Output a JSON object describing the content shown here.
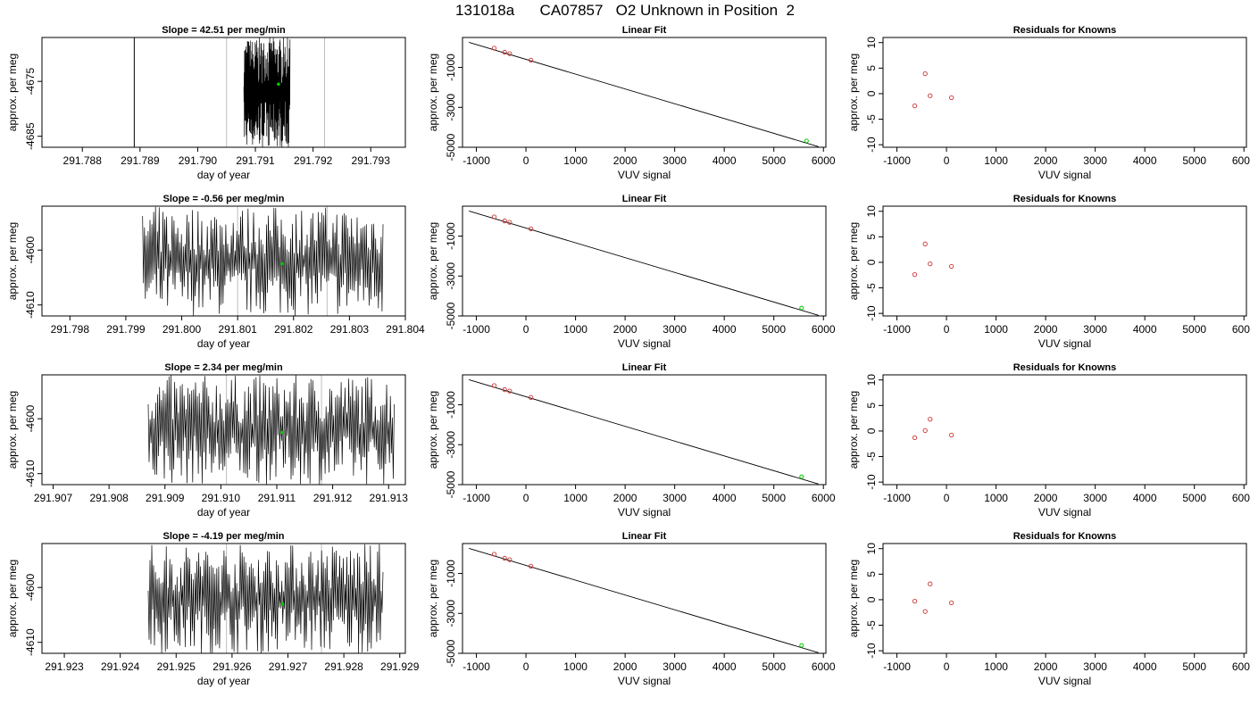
{
  "title": "131018a      CA07857   O2 Unknown in Position  2",
  "chart_data": [
    {
      "type": "line",
      "title": "Slope =  42.51  per meg/min",
      "xlabel": "day of year",
      "ylabel": "approx. per meg",
      "xlim": [
        291.7873,
        291.7936
      ],
      "ylim": [
        -4687,
        -4667
      ],
      "xticks": [
        "291.788",
        "291.789",
        "291.790",
        "291.791",
        "291.792",
        "291.793"
      ],
      "yticks": [
        "-4675",
        "-4685"
      ],
      "vlines_black": [
        291.7889
      ],
      "vlines_gray": [
        291.7905,
        291.7922
      ],
      "trace_x_range": [
        291.7908,
        291.7916
      ],
      "trace_y_range": [
        -4687,
        -4667
      ],
      "green_point": [
        291.7914,
        -4675.5
      ]
    },
    {
      "type": "scatter",
      "title": "Linear Fit",
      "xlabel": "VUV signal",
      "ylabel": "approx. per meg",
      "xlim": [
        -1280,
        6050
      ],
      "ylim": [
        -5000,
        500
      ],
      "xticks": [
        "-1000",
        "0",
        "1000",
        "2000",
        "3000",
        "4000",
        "5000",
        "6000"
      ],
      "yticks": [
        "-1000",
        "-3000",
        "-5000"
      ],
      "points": [
        [
          -640,
          -39
        ],
        [
          -430,
          -241
        ],
        [
          -330,
          -311
        ],
        [
          100,
          -633
        ]
      ],
      "unknown": [
        5660,
        -4681
      ],
      "fit_line": [
        [
          -1150,
          257
        ],
        [
          5900,
          -4970
        ]
      ]
    },
    {
      "type": "scatter",
      "title": "Residuals for Knowns",
      "xlabel": "VUV signal",
      "ylabel": "approx. per meg",
      "xlim": [
        -1280,
        6050
      ],
      "ylim": [
        -10.5,
        11
      ],
      "xticks": [
        "-1000",
        "0",
        "1000",
        "2000",
        "3000",
        "4000",
        "5000",
        "6000"
      ],
      "yticks": [
        "10",
        "5",
        "0",
        "-5",
        "-10"
      ],
      "points": [
        [
          -640,
          -2.4
        ],
        [
          -430,
          3.9
        ],
        [
          -330,
          -0.4
        ],
        [
          100,
          -0.8
        ]
      ]
    },
    {
      "type": "line",
      "title": "Slope =  -0.56  per meg/min",
      "xlabel": "day of year",
      "ylabel": "approx. per meg",
      "xlim": [
        291.7975,
        291.804
      ],
      "ylim": [
        -4612,
        -4592
      ],
      "xticks": [
        "291.798",
        "291.799",
        "291.800",
        "291.801",
        "291.802",
        "291.803",
        "291.804"
      ],
      "yticks": [
        "-4600",
        "-4610"
      ],
      "vlines_black": [],
      "vlines_gray": [
        291.801,
        291.8026
      ],
      "trace_x_range": [
        291.7993,
        291.8036
      ],
      "trace_y_range": [
        -4612,
        -4592
      ],
      "green_point": [
        291.8018,
        -4602.5
      ]
    },
    {
      "type": "scatter",
      "title": "Linear Fit",
      "xlabel": "VUV signal",
      "ylabel": "approx. per meg",
      "xlim": [
        -1280,
        6050
      ],
      "ylim": [
        -5000,
        500
      ],
      "xticks": [
        "-1000",
        "0",
        "1000",
        "2000",
        "3000",
        "4000",
        "5000",
        "6000"
      ],
      "yticks": [
        "-1000",
        "-3000",
        "-5000"
      ],
      "points": [
        [
          -640,
          -39
        ],
        [
          -430,
          -241
        ],
        [
          -330,
          -311
        ],
        [
          100,
          -633
        ]
      ],
      "unknown": [
        5560,
        -4602
      ],
      "fit_line": [
        [
          -1150,
          257
        ],
        [
          5900,
          -4970
        ]
      ]
    },
    {
      "type": "scatter",
      "title": "Residuals for Knowns",
      "xlabel": "VUV signal",
      "ylabel": "approx. per meg",
      "xlim": [
        -1280,
        6050
      ],
      "ylim": [
        -10.5,
        11
      ],
      "xticks": [
        "-1000",
        "0",
        "1000",
        "2000",
        "3000",
        "4000",
        "5000",
        "6000"
      ],
      "yticks": [
        "10",
        "5",
        "0",
        "-5",
        "-10"
      ],
      "points": [
        [
          -640,
          -2.4
        ],
        [
          -430,
          3.6
        ],
        [
          -330,
          -0.3
        ],
        [
          100,
          -0.8
        ]
      ]
    },
    {
      "type": "line",
      "title": "Slope =  2.34  per meg/min",
      "xlabel": "day of year",
      "ylabel": "approx. per meg",
      "xlim": [
        291.9068,
        291.9133
      ],
      "ylim": [
        -4612,
        -4592
      ],
      "xticks": [
        "291.907",
        "291.908",
        "291.909",
        "291.910",
        "291.911",
        "291.912",
        "291.913"
      ],
      "yticks": [
        "-4600",
        "-4610"
      ],
      "vlines_black": [],
      "vlines_gray": [
        291.9101,
        291.9118
      ],
      "trace_x_range": [
        291.9087,
        291.9131
      ],
      "trace_y_range": [
        -4612,
        -4592
      ],
      "green_point": [
        291.9111,
        -4602.5
      ]
    },
    {
      "type": "scatter",
      "title": "Linear Fit",
      "xlabel": "VUV signal",
      "ylabel": "approx. per meg",
      "xlim": [
        -1280,
        6050
      ],
      "ylim": [
        -5000,
        500
      ],
      "xticks": [
        "-1000",
        "0",
        "1000",
        "2000",
        "3000",
        "4000",
        "5000",
        "6000"
      ],
      "yticks": [
        "-1000",
        "-3000",
        "-5000"
      ],
      "points": [
        [
          -640,
          -39
        ],
        [
          -430,
          -241
        ],
        [
          -330,
          -311
        ],
        [
          100,
          -633
        ]
      ],
      "unknown": [
        5560,
        -4602
      ],
      "fit_line": [
        [
          -1150,
          257
        ],
        [
          5900,
          -4970
        ]
      ]
    },
    {
      "type": "scatter",
      "title": "Residuals for Knowns",
      "xlabel": "VUV signal",
      "ylabel": "approx. per meg",
      "xlim": [
        -1280,
        6050
      ],
      "ylim": [
        -10.5,
        11
      ],
      "xticks": [
        "-1000",
        "0",
        "1000",
        "2000",
        "3000",
        "4000",
        "5000",
        "6000"
      ],
      "yticks": [
        "10",
        "5",
        "0",
        "-5",
        "-10"
      ],
      "points": [
        [
          -640,
          -1.3
        ],
        [
          -430,
          0.1
        ],
        [
          -330,
          2.3
        ],
        [
          100,
          -0.8
        ]
      ]
    },
    {
      "type": "line",
      "title": "Slope =  -4.19  per meg/min",
      "xlabel": "day of year",
      "ylabel": "approx. per meg",
      "xlim": [
        291.9226,
        291.9291
      ],
      "ylim": [
        -4612,
        -4592
      ],
      "xticks": [
        "291.923",
        "291.924",
        "291.925",
        "291.926",
        "291.927",
        "291.928",
        "291.929"
      ],
      "yticks": [
        "-4600",
        "-4610"
      ],
      "vlines_black": [],
      "vlines_gray": [
        291.9259,
        291.9276
      ],
      "trace_x_range": [
        291.9245,
        291.9287
      ],
      "trace_y_range": [
        -4612,
        -4592
      ],
      "green_point": [
        291.9269,
        -4603
      ]
    },
    {
      "type": "scatter",
      "title": "Linear Fit",
      "xlabel": "VUV signal",
      "ylabel": "approx. per meg",
      "xlim": [
        -1280,
        6050
      ],
      "ylim": [
        -5000,
        500
      ],
      "xticks": [
        "-1000",
        "0",
        "1000",
        "2000",
        "3000",
        "4000",
        "5000",
        "6000"
      ],
      "yticks": [
        "-1000",
        "-3000",
        "-5000"
      ],
      "points": [
        [
          -640,
          -39
        ],
        [
          -430,
          -241
        ],
        [
          -330,
          -311
        ],
        [
          100,
          -633
        ]
      ],
      "unknown": [
        5560,
        -4602
      ],
      "fit_line": [
        [
          -1150,
          257
        ],
        [
          5900,
          -4970
        ]
      ]
    },
    {
      "type": "scatter",
      "title": "Residuals for Knowns",
      "xlabel": "VUV signal",
      "ylabel": "approx. per meg",
      "xlim": [
        -1280,
        6050
      ],
      "ylim": [
        -10.5,
        11
      ],
      "xticks": [
        "-1000",
        "0",
        "1000",
        "2000",
        "3000",
        "4000",
        "5000",
        "6000"
      ],
      "yticks": [
        "10",
        "5",
        "0",
        "-5",
        "-10"
      ],
      "points": [
        [
          -640,
          -0.3
        ],
        [
          -430,
          -2.3
        ],
        [
          -330,
          3.1
        ],
        [
          100,
          -0.6
        ]
      ]
    }
  ]
}
